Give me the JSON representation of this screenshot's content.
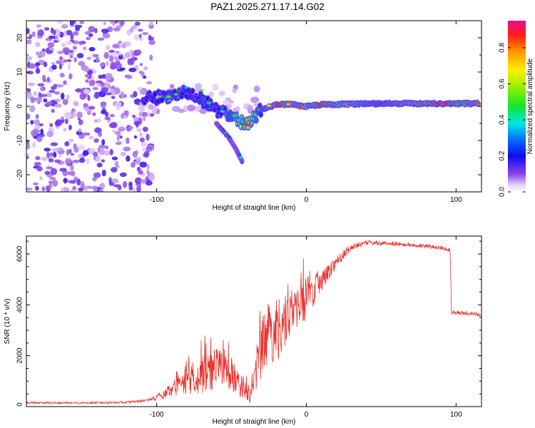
{
  "title": "PAZ1.2025.271.17.14.G02",
  "chart_data": [
    {
      "type": "heatmap",
      "xlabel": "Height of straight line (km)",
      "ylabel": "Frequency (Hz)",
      "xlim": [
        -187,
        117
      ],
      "ylim": [
        -25,
        25
      ],
      "xticks": [
        -100,
        0,
        100
      ],
      "xtick_labels": [
        "-100",
        "0",
        "100"
      ],
      "yticks": [
        -20,
        -10,
        0,
        10,
        20
      ],
      "ytick_labels": [
        "-20",
        "-10",
        "0",
        "10",
        "20"
      ],
      "colorbar": {
        "label": "Normalized spectral amplitude",
        "range": [
          0,
          0.95
        ],
        "ticks": [
          "0.0",
          "0.2",
          "0.4",
          "0.6",
          "0.8"
        ],
        "colormap": "rainbow"
      },
      "features": {
        "noise_region_x": [
          -187,
          -103
        ],
        "track": [
          {
            "x": -109,
            "y": 2.5,
            "v": 0.2
          },
          {
            "x": -100,
            "y": 2.5,
            "v": 0.3
          },
          {
            "x": -90,
            "y": 3,
            "v": 0.45
          },
          {
            "x": -80,
            "y": 4,
            "v": 0.25
          },
          {
            "x": -70,
            "y": 2,
            "v": 0.3
          },
          {
            "x": -60,
            "y": -1,
            "v": 0.3
          },
          {
            "x": -50,
            "y": -3,
            "v": 0.5
          },
          {
            "x": -40,
            "y": -5.5,
            "v": 0.85
          },
          {
            "x": -30,
            "y": -1,
            "v": 0.4
          },
          {
            "x": -20,
            "y": 0.5,
            "v": 0.9
          },
          {
            "x": -10,
            "y": 0.5,
            "v": 0.8
          },
          {
            "x": 0,
            "y": 0,
            "v": 0.7
          },
          {
            "x": 10,
            "y": 0.5,
            "v": 0.85
          },
          {
            "x": 50,
            "y": 0.8,
            "v": 0.5
          },
          {
            "x": 90,
            "y": 0.8,
            "v": 0.9
          },
          {
            "x": 115,
            "y": 0.8,
            "v": 0.75
          }
        ],
        "branch": [
          {
            "x": -60,
            "y": -5,
            "v": 0.3
          },
          {
            "x": -52,
            "y": -9,
            "v": 0.4
          },
          {
            "x": -47,
            "y": -12.5,
            "v": 0.25
          },
          {
            "x": -43,
            "y": -16,
            "v": 0.3
          }
        ]
      }
    },
    {
      "type": "line",
      "xlabel": "Height of straight line (km)",
      "ylabel": "SNR (10 * v/v)",
      "xlim": [
        -187,
        117
      ],
      "ylim": [
        0,
        6700
      ],
      "xticks": [
        -100,
        0,
        100
      ],
      "xtick_labels": [
        "-100",
        "0",
        "100"
      ],
      "yticks": [
        0,
        2000,
        4000,
        6000
      ],
      "ytick_labels": [
        "0",
        "2000",
        "4000",
        "6000"
      ],
      "color": "#e8302a",
      "series": [
        {
          "name": "SNR",
          "x": [
            -187,
            -150,
            -120,
            -105,
            -95,
            -85,
            -75,
            -65,
            -55,
            -45,
            -38,
            -33,
            -28,
            -20,
            -10,
            0,
            10,
            20,
            30,
            40,
            50,
            60,
            70,
            80,
            90,
            96,
            97,
            100,
            110,
            117
          ],
          "values": [
            150,
            140,
            170,
            250,
            500,
            850,
            1150,
            1350,
            1600,
            900,
            500,
            1500,
            2600,
            3000,
            3700,
            4200,
            4900,
            5700,
            6250,
            6450,
            6420,
            6400,
            6350,
            6300,
            6250,
            6150,
            3700,
            3700,
            3650,
            3600
          ],
          "noise_amplitude": [
            40,
            40,
            45,
            60,
            200,
            400,
            700,
            800,
            800,
            500,
            400,
            900,
            1200,
            1300,
            900,
            800,
            400,
            250,
            120,
            100,
            80,
            80,
            80,
            80,
            80,
            80,
            80,
            80,
            80,
            80
          ]
        }
      ]
    }
  ]
}
